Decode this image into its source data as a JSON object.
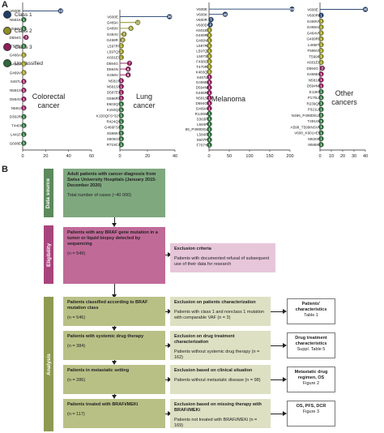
{
  "panel_a_label": "A",
  "panel_b_label": "B",
  "legend": [
    {
      "label": "Class 1",
      "color": "#1f3d6b"
    },
    {
      "label": "Class 2",
      "color": "#8f8f26"
    },
    {
      "label": "Class 3",
      "color": "#8c1d5a"
    },
    {
      "label": "Unclassified",
      "color": "#2c6a3a"
    }
  ],
  "chart_data": [
    {
      "type": "lollipop",
      "title": "Colorectal cancer",
      "xticks": [
        "0",
        "20",
        "40",
        "60"
      ],
      "xlim": [
        0,
        60
      ],
      "points": [
        {
          "label": "V600E",
          "value": 33,
          "class": 1
        },
        {
          "label": "N581K",
          "value": 1,
          "class": 4
        },
        {
          "label": "I582V",
          "value": 1,
          "class": 4
        },
        {
          "label": "D594G",
          "value": 3,
          "class": 3
        },
        {
          "label": "F595L",
          "value": 1,
          "class": 4
        },
        {
          "label": "G466A",
          "value": 1,
          "class": 2
        },
        {
          "label": "G466V",
          "value": 1,
          "class": 2
        },
        {
          "label": "G469V",
          "value": 1,
          "class": 2
        },
        {
          "label": "S467L",
          "value": 1,
          "class": 3
        },
        {
          "label": "N581S",
          "value": 1,
          "class": 3
        },
        {
          "label": "D594V",
          "value": 1,
          "class": 3
        },
        {
          "label": "N581I",
          "value": 1,
          "class": 3
        },
        {
          "label": "D392R",
          "value": 1,
          "class": 4
        },
        {
          "label": "T440I",
          "value": 1,
          "class": 4
        },
        {
          "label": "L441F",
          "value": 1,
          "class": 4
        },
        {
          "label": "G608E",
          "value": 1,
          "class": 4
        }
      ]
    },
    {
      "type": "lollipop",
      "title": "Lung cancer",
      "xticks": [
        "0",
        "20",
        "40"
      ],
      "xlim": [
        0,
        40
      ],
      "points": [
        {
          "label": "V600E",
          "value": 36,
          "class": 1
        },
        {
          "label": "G469A",
          "value": 13,
          "class": 2
        },
        {
          "label": "G469V",
          "value": 8,
          "class": 2
        },
        {
          "label": "G464V",
          "value": 3,
          "class": 2
        },
        {
          "label": "G469R",
          "value": 2,
          "class": 2
        },
        {
          "label": "L597R",
          "value": 1,
          "class": 2
        },
        {
          "label": "L597Q",
          "value": 1,
          "class": 2
        },
        {
          "label": "K601E",
          "value": 1,
          "class": 2
        },
        {
          "label": "D594G",
          "value": 7,
          "class": 3
        },
        {
          "label": "D594N",
          "value": 6,
          "class": 3
        },
        {
          "label": "G466V",
          "value": 6,
          "class": 3
        },
        {
          "label": "N581I",
          "value": 1,
          "class": 3
        },
        {
          "label": "N581S",
          "value": 1,
          "class": 3
        },
        {
          "label": "D587E",
          "value": 1,
          "class": 3
        },
        {
          "label": "G596R",
          "value": 1,
          "class": 3
        },
        {
          "label": "E603Q",
          "value": 1,
          "class": 4
        },
        {
          "label": "K150Q",
          "value": 1,
          "class": 4
        },
        {
          "label": "K150QFS*32",
          "value": 1,
          "class": 4
        },
        {
          "label": "R424Q",
          "value": 1,
          "class": 4
        },
        {
          "label": "G466FS",
          "value": 1,
          "class": 4
        },
        {
          "label": "E586K",
          "value": 1,
          "class": 4
        },
        {
          "label": "S605G",
          "value": 1,
          "class": 4
        },
        {
          "label": "R719C",
          "value": 1,
          "class": 4
        }
      ]
    },
    {
      "type": "lollipop",
      "title": "Melanoma",
      "xticks": [
        "0",
        "50",
        "100",
        "150",
        "200"
      ],
      "xlim": [
        0,
        200
      ],
      "points": [
        {
          "label": "V600E",
          "value": 205,
          "class": 1
        },
        {
          "label": "V600K",
          "value": 40,
          "class": 1
        },
        {
          "label": "V600R",
          "value": 5,
          "class": 1
        },
        {
          "label": "V600D",
          "value": 3,
          "class": 1
        },
        {
          "label": "K601E",
          "value": 1,
          "class": 2
        },
        {
          "label": "G469R",
          "value": 1,
          "class": 2
        },
        {
          "label": "G469V",
          "value": 1,
          "class": 2
        },
        {
          "label": "L597R",
          "value": 1,
          "class": 2
        },
        {
          "label": "L597Q",
          "value": 1,
          "class": 2
        },
        {
          "label": "L597S",
          "value": 1,
          "class": 2
        },
        {
          "label": "F468C",
          "value": 1,
          "class": 2
        },
        {
          "label": "T470R",
          "value": 1,
          "class": 2
        },
        {
          "label": "K483Q",
          "value": 1,
          "class": 2
        },
        {
          "label": "S467L",
          "value": 1,
          "class": 3
        },
        {
          "label": "G466E",
          "value": 1,
          "class": 3
        },
        {
          "label": "D594N",
          "value": 1,
          "class": 3
        },
        {
          "label": "G466R",
          "value": 1,
          "class": 3
        },
        {
          "label": "N581S",
          "value": 1,
          "class": 3
        },
        {
          "label": "D594G",
          "value": 1,
          "class": 3
        },
        {
          "label": "G469A",
          "value": 1,
          "class": 3
        },
        {
          "label": "R146W",
          "value": 1,
          "class": 4
        },
        {
          "label": "S363F",
          "value": 1,
          "class": 4
        },
        {
          "label": "L584F",
          "value": 1,
          "class": 4
        },
        {
          "label": "86_P490DEL",
          "value": 1,
          "class": 4
        },
        {
          "label": "L584F",
          "value": 1,
          "class": 4
        },
        {
          "label": "S607F",
          "value": 1,
          "class": 4
        },
        {
          "label": "F707Y",
          "value": 1,
          "class": 4
        }
      ]
    },
    {
      "type": "lollipop",
      "title": "Other cancers",
      "xticks": [
        "0",
        "10",
        "20",
        "30",
        "40"
      ],
      "xlim": [
        0,
        40
      ],
      "points": [
        {
          "label": "V600E",
          "value": 40,
          "class": 1
        },
        {
          "label": "V600R",
          "value": 1,
          "class": 1
        },
        {
          "label": "G469V",
          "value": 1,
          "class": 2
        },
        {
          "label": "G469A",
          "value": 1,
          "class": 2
        },
        {
          "label": "G464V",
          "value": 1,
          "class": 2
        },
        {
          "label": "G469R",
          "value": 1,
          "class": 2
        },
        {
          "label": "L485F",
          "value": 1,
          "class": 2
        },
        {
          "label": "F595V",
          "value": 1,
          "class": 2
        },
        {
          "label": "T599I",
          "value": 1,
          "class": 2
        },
        {
          "label": "K601E",
          "value": 1,
          "class": 2
        },
        {
          "label": "D594G",
          "value": 2,
          "class": 3
        },
        {
          "label": "G466E",
          "value": 1,
          "class": 3
        },
        {
          "label": "N581I",
          "value": 1,
          "class": 3
        },
        {
          "label": "D594N",
          "value": 1,
          "class": 3
        },
        {
          "label": "E13K",
          "value": 1,
          "class": 4
        },
        {
          "label": "P170L",
          "value": 1,
          "class": 4
        },
        {
          "label": "R239Q",
          "value": 1,
          "class": 4
        },
        {
          "label": "P321L",
          "value": 1,
          "class": 4
        },
        {
          "label": "N486_P490DEL",
          "value": 1,
          "class": 4
        },
        {
          "label": "T491S",
          "value": 1,
          "class": 4
        },
        {
          "label": "A598_T599INSV",
          "value": 1,
          "class": 4
        },
        {
          "label": "V600_K601>E",
          "value": 1,
          "class": 4
        },
        {
          "label": "M620I",
          "value": 1,
          "class": 4
        },
        {
          "label": "I656M",
          "value": 1,
          "class": 4
        }
      ]
    }
  ],
  "flow": {
    "sections": [
      {
        "label": "Data source",
        "color": "#5c8a5c"
      },
      {
        "label": "Eligibility",
        "color": "#a8447c"
      },
      {
        "label": "Analysis",
        "color": "#8e9a52"
      }
    ],
    "source_box": {
      "title": "Adult patients with cancer diagnosis from Swiss University Hospitals (January 2015-December 2020)",
      "note": "Total number of cases (~40 000)"
    },
    "eligibility_box": {
      "title": "Patients with any BRAF gene mutation in a tumor or liquid biopsy detected by sequencing",
      "note": "(n = 549)"
    },
    "exclusion_criteria": {
      "title": "Exclusion criteria",
      "note": "Patients with documented refusal of subsequent use of their data for research"
    },
    "steps": [
      {
        "title": "Patients classified according to BRAF mutation class",
        "n": "(n = 546)",
        "excl_title": "Exclusion on patients characterization",
        "excl_note": "Patients with class 1 and nonclass 1 mutation with comparable VAF (n = 3)",
        "out_title": "Patients' characteristics",
        "out_sub": "Table 1"
      },
      {
        "title": "Patients with systemic drug therapy",
        "n": "(n = 384)",
        "excl_title": "Exclusion on drug treatment characterization",
        "excl_note": "Patients without systemic drug therapy (n = 162)",
        "out_title": "Drug treatment characteristics",
        "out_sub": "Suppl. Table 5"
      },
      {
        "title": "Patients in metastatic setting",
        "n": "(n = 286)",
        "excl_title": "Exclusion based on clinical situation",
        "excl_note": "Patients without metastatic disease (n = 98)",
        "out_title": "Metastatic drug regimen, OS",
        "out_sub": "Figure 2"
      },
      {
        "title": "Patients treated with BRAFi/MEKi",
        "n": "(n = 117)",
        "excl_title": "Exclusion based on missing therapy with BRAFi/MEKi",
        "excl_note": "Patients not treated with BRAFi/MEKi (n = 169)",
        "out_title": "OS, PFS, DCR",
        "out_sub": "Figure 3"
      }
    ]
  }
}
